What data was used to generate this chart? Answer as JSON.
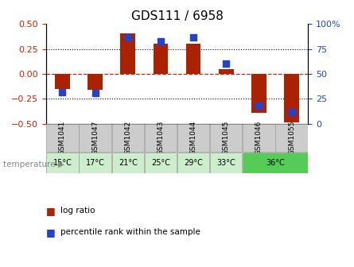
{
  "title": "GDS111 / 6958",
  "samples": [
    "GSM1041",
    "GSM1047",
    "GSM1042",
    "GSM1043",
    "GSM1044",
    "GSM1045",
    "GSM1046",
    "GSM1055"
  ],
  "temp_groups": [
    {
      "label": "15°C",
      "span": 1,
      "color": "#cceecc"
    },
    {
      "label": "17°C",
      "span": 1,
      "color": "#cceecc"
    },
    {
      "label": "21°C",
      "span": 1,
      "color": "#cceecc"
    },
    {
      "label": "25°C",
      "span": 1,
      "color": "#cceecc"
    },
    {
      "label": "29°C",
      "span": 1,
      "color": "#cceecc"
    },
    {
      "label": "33°C",
      "span": 1,
      "color": "#cceecc"
    },
    {
      "label": "36°C",
      "span": 2,
      "color": "#55cc55"
    }
  ],
  "log_ratio": [
    -0.155,
    -0.16,
    0.41,
    0.305,
    0.305,
    0.05,
    -0.39,
    -0.49
  ],
  "percentile_rank": [
    32,
    31,
    87,
    83,
    87,
    60,
    18,
    12
  ],
  "ylim": [
    -0.5,
    0.5
  ],
  "yticks": [
    -0.5,
    -0.25,
    0.0,
    0.25,
    0.5
  ],
  "yticks_right": [
    0,
    25,
    50,
    75,
    100
  ],
  "bar_color": "#aa2200",
  "dot_color": "#2244cc",
  "zero_line_color": "#cc2200",
  "grid_color": "#000000",
  "sample_bg": "#cccccc"
}
